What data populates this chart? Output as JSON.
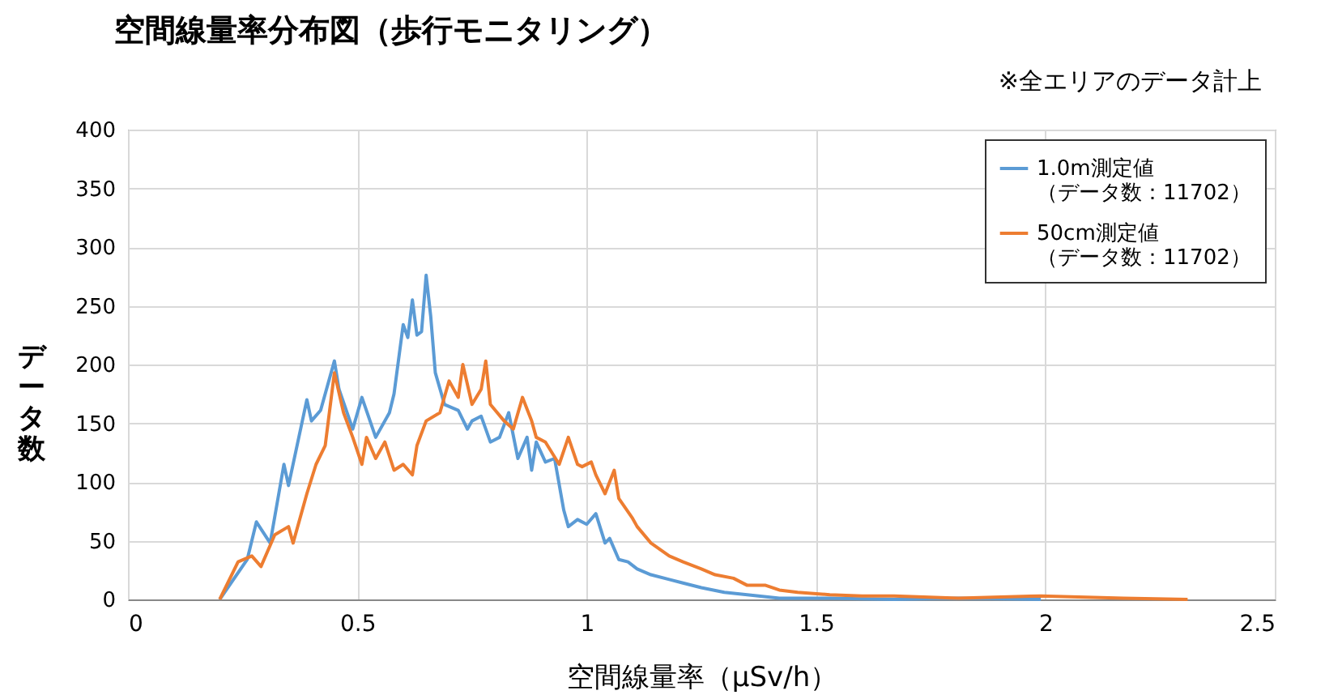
{
  "chart_data": {
    "type": "line",
    "title": "空間線量率分布図（歩行モニタリング）",
    "xlabel": "空間線量率（μSv/h）",
    "ylabel": "データ数",
    "annotations": [
      "※全エリアのデータ計上"
    ],
    "xlim": [
      0,
      2.5
    ],
    "xticks": [
      0,
      0.5,
      1,
      1.5,
      2,
      2.5
    ],
    "ylim": [
      0,
      400
    ],
    "yticks": [
      0,
      50,
      100,
      150,
      200,
      250,
      300,
      350,
      400
    ],
    "grid": true,
    "legend": "top right",
    "marker": "none",
    "line_style": "solid",
    "series": [
      {
        "name": "1.0m測定値（データ数：11702）",
        "color": "#5b9bd5",
        "x": [
          0.2,
          0.26,
          0.28,
          0.31,
          0.34,
          0.35,
          0.39,
          0.4,
          0.42,
          0.45,
          0.46,
          0.49,
          0.51,
          0.54,
          0.57,
          0.58,
          0.6,
          0.61,
          0.62,
          0.63,
          0.64,
          0.65,
          0.66,
          0.67,
          0.69,
          0.72,
          0.74,
          0.75,
          0.77,
          0.79,
          0.81,
          0.83,
          0.85,
          0.87,
          0.88,
          0.89,
          0.91,
          0.93,
          0.95,
          0.96,
          0.98,
          1.0,
          1.02,
          1.04,
          1.05,
          1.07,
          1.09,
          1.11,
          1.14,
          1.18,
          1.21,
          1.25,
          1.3,
          1.35,
          1.42,
          1.53,
          1.67,
          1.81,
          1.99
        ],
        "values": [
          0,
          34,
          66,
          48,
          115,
          97,
          170,
          152,
          161,
          203,
          179,
          145,
          172,
          138,
          159,
          175,
          234,
          223,
          255,
          225,
          228,
          276,
          241,
          193,
          166,
          161,
          145,
          152,
          156,
          134,
          138,
          159,
          120,
          138,
          110,
          134,
          117,
          120,
          76,
          62,
          68,
          64,
          73,
          48,
          52,
          34,
          32,
          26,
          21,
          17,
          14,
          10,
          6,
          4,
          1,
          1,
          0,
          1,
          0
        ]
      },
      {
        "name": "50cm測定値（データ数：11702）",
        "color": "#ed7d31",
        "x": [
          0.2,
          0.24,
          0.27,
          0.29,
          0.32,
          0.35,
          0.36,
          0.39,
          0.41,
          0.43,
          0.45,
          0.47,
          0.49,
          0.51,
          0.52,
          0.54,
          0.56,
          0.58,
          0.6,
          0.62,
          0.63,
          0.65,
          0.68,
          0.7,
          0.72,
          0.73,
          0.75,
          0.77,
          0.78,
          0.79,
          0.82,
          0.84,
          0.86,
          0.88,
          0.89,
          0.91,
          0.94,
          0.96,
          0.98,
          0.99,
          1.01,
          1.02,
          1.04,
          1.06,
          1.07,
          1.1,
          1.11,
          1.14,
          1.18,
          1.21,
          1.25,
          1.28,
          1.32,
          1.35,
          1.39,
          1.42,
          1.46,
          1.53,
          1.6,
          1.67,
          1.81,
          1.99,
          2.17,
          2.31
        ],
        "values": [
          0,
          32,
          37,
          28,
          55,
          62,
          48,
          90,
          115,
          131,
          193,
          159,
          138,
          115,
          138,
          120,
          134,
          110,
          115,
          106,
          131,
          152,
          159,
          186,
          172,
          200,
          166,
          179,
          203,
          166,
          152,
          145,
          172,
          152,
          138,
          134,
          115,
          138,
          115,
          113,
          117,
          106,
          90,
          110,
          86,
          69,
          62,
          48,
          37,
          32,
          26,
          21,
          18,
          12,
          12,
          8,
          6,
          4,
          3,
          3,
          1,
          3,
          1,
          0
        ]
      }
    ]
  }
}
